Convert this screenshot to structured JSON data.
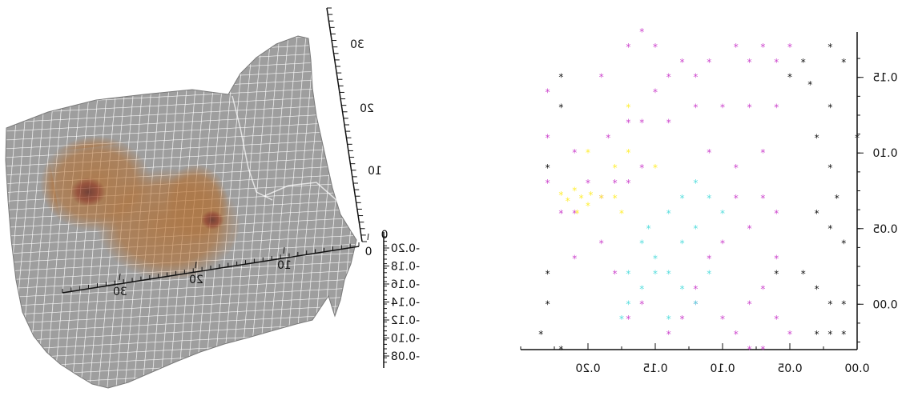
{
  "chart_data": [
    {
      "type": "surface",
      "title": "",
      "note": "3D wireframe surface with brown shading, rendered mirrored",
      "colors": {
        "mesh_fill": "#9e9e9e",
        "mesh_line": "#ffffff",
        "shade": "#b5651d",
        "peak": "#8b1a00"
      },
      "x_ticks": [
        "30",
        "20",
        "10",
        "0"
      ],
      "y_ticks": [
        "0",
        "10",
        "20",
        "30"
      ],
      "z_ticks": [
        "-0.20",
        "-0.18",
        "-0.16",
        "-0.14",
        "-0.12",
        "-0.10",
        "-0.08"
      ]
    },
    {
      "type": "scatter",
      "title": "",
      "xlabel": "",
      "ylabel": "",
      "note": "star markers, rendered mirrored",
      "xlim": [
        0.0,
        0.25
      ],
      "ylim": [
        -0.03,
        0.18
      ],
      "x_ticks": [
        "0.20",
        "0.15",
        "0.10",
        "0.05",
        "0.00"
      ],
      "y_ticks": [
        "0.15",
        "0.10",
        "0.05",
        "0.00"
      ],
      "series": [
        {
          "color": "#111111",
          "points": [
            [
              0.01,
              -0.02
            ],
            [
              0.02,
              -0.02
            ],
            [
              0.03,
              -0.02
            ],
            [
              0.01,
              0.0
            ],
            [
              0.02,
              0.0
            ],
            [
              0.03,
              0.01
            ],
            [
              0.04,
              0.02
            ],
            [
              0.01,
              0.04
            ],
            [
              0.02,
              0.05
            ],
            [
              0.03,
              0.06
            ],
            [
              0.02,
              0.09
            ],
            [
              0.03,
              0.11
            ],
            [
              0.02,
              0.13
            ],
            [
              0.01,
              0.16
            ],
            [
              0.02,
              0.17
            ],
            [
              0.04,
              0.16
            ],
            [
              0.05,
              0.15
            ],
            [
              0.035,
              0.145
            ],
            [
              0.06,
              0.02
            ],
            [
              0.0,
              0.11
            ],
            [
              0.015,
              0.07
            ],
            [
              0.22,
              0.15
            ],
            [
              0.22,
              0.13
            ],
            [
              0.23,
              0.09
            ],
            [
              0.23,
              0.02
            ],
            [
              0.23,
              0.0
            ],
            [
              0.235,
              -0.02
            ],
            [
              0.22,
              -0.03
            ]
          ]
        },
        {
          "color": "#cc44cc",
          "points": [
            [
              0.05,
              0.17
            ],
            [
              0.06,
              0.16
            ],
            [
              0.07,
              0.17
            ],
            [
              0.08,
              0.16
            ],
            [
              0.09,
              0.17
            ],
            [
              0.11,
              0.16
            ],
            [
              0.12,
              0.15
            ],
            [
              0.13,
              0.16
            ],
            [
              0.14,
              0.15
            ],
            [
              0.15,
              0.14
            ],
            [
              0.16,
              0.12
            ],
            [
              0.17,
              0.12
            ],
            [
              0.06,
              0.13
            ],
            [
              0.08,
              0.13
            ],
            [
              0.1,
              0.13
            ],
            [
              0.12,
              0.13
            ],
            [
              0.14,
              0.12
            ],
            [
              0.07,
              0.1
            ],
            [
              0.09,
              0.09
            ],
            [
              0.11,
              0.1
            ],
            [
              0.16,
              0.09
            ],
            [
              0.17,
              0.08
            ],
            [
              0.07,
              0.07
            ],
            [
              0.09,
              0.07
            ],
            [
              0.06,
              0.06
            ],
            [
              0.08,
              0.05
            ],
            [
              0.06,
              0.03
            ],
            [
              0.07,
              0.01
            ],
            [
              0.08,
              0.0
            ],
            [
              0.06,
              -0.01
            ],
            [
              0.05,
              -0.02
            ],
            [
              0.12,
              0.01
            ],
            [
              0.12,
              0.0
            ],
            [
              0.13,
              -0.01
            ],
            [
              0.14,
              -0.02
            ],
            [
              0.16,
              0.0
            ],
            [
              0.17,
              -0.01
            ],
            [
              0.18,
              0.02
            ],
            [
              0.19,
              0.04
            ],
            [
              0.21,
              0.06
            ],
            [
              0.21,
              0.03
            ],
            [
              0.22,
              0.06
            ],
            [
              0.23,
              0.08
            ],
            [
              0.2,
              0.08
            ],
            [
              0.19,
              0.07
            ],
            [
              0.18,
              0.08
            ],
            [
              0.185,
              0.11
            ],
            [
              0.21,
              0.1
            ],
            [
              0.23,
              0.11
            ],
            [
              0.23,
              0.14
            ],
            [
              0.19,
              0.15
            ],
            [
              0.17,
              0.17
            ],
            [
              0.16,
              0.18
            ],
            [
              0.15,
              0.17
            ],
            [
              0.11,
              0.03
            ],
            [
              0.1,
              0.04
            ],
            [
              0.09,
              -0.02
            ],
            [
              0.1,
              -0.01
            ],
            [
              0.07,
              -0.03
            ],
            [
              0.08,
              -0.03
            ]
          ]
        },
        {
          "color": "#ffee33",
          "points": [
            [
              0.205,
              0.07
            ],
            [
              0.21,
              0.075
            ],
            [
              0.215,
              0.068
            ],
            [
              0.2,
              0.065
            ],
            [
              0.208,
              0.06
            ],
            [
              0.198,
              0.072
            ],
            [
              0.22,
              0.072
            ],
            [
              0.19,
              0.07
            ],
            [
              0.18,
              0.07
            ],
            [
              0.18,
              0.09
            ],
            [
              0.17,
              0.1
            ],
            [
              0.17,
              0.13
            ],
            [
              0.2,
              0.1
            ],
            [
              0.15,
              0.09
            ],
            [
              0.175,
              0.06
            ]
          ]
        },
        {
          "color": "#55dddd",
          "points": [
            [
              0.11,
              0.07
            ],
            [
              0.1,
              0.06
            ],
            [
              0.12,
              0.05
            ],
            [
              0.13,
              0.07
            ],
            [
              0.14,
              0.06
            ],
            [
              0.13,
              0.04
            ],
            [
              0.14,
              0.02
            ],
            [
              0.15,
              0.03
            ],
            [
              0.16,
              0.04
            ],
            [
              0.15,
              0.02
            ],
            [
              0.13,
              0.01
            ],
            [
              0.12,
              0.0
            ],
            [
              0.14,
              -0.01
            ],
            [
              0.16,
              0.01
            ],
            [
              0.17,
              0.02
            ],
            [
              0.11,
              0.02
            ],
            [
              0.12,
              0.08
            ],
            [
              0.155,
              0.05
            ],
            [
              0.17,
              0.0
            ],
            [
              0.175,
              -0.01
            ]
          ]
        }
      ]
    }
  ]
}
